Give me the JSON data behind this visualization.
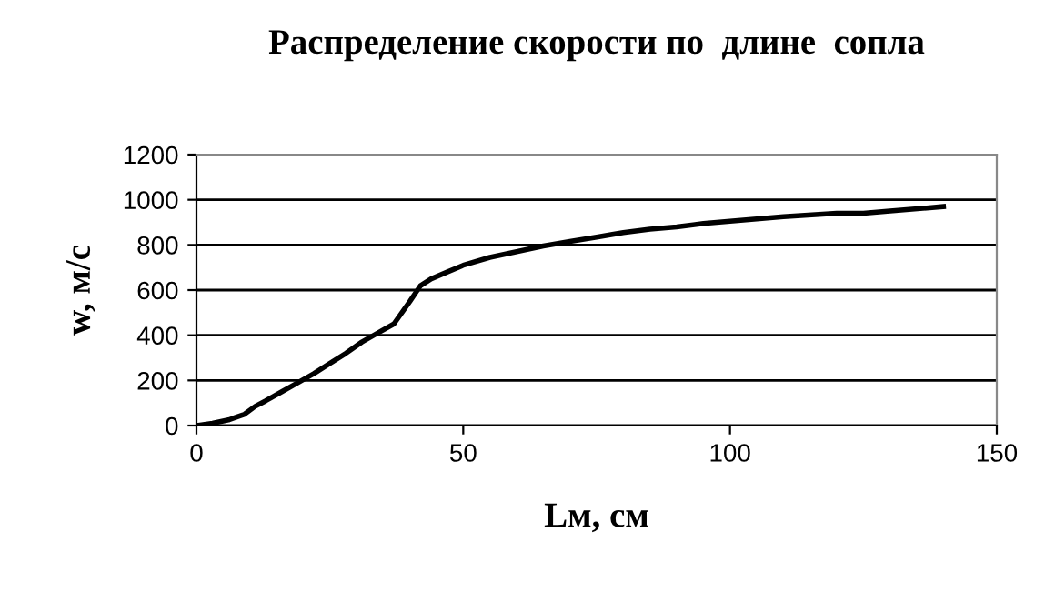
{
  "chart_data": {
    "type": "line",
    "title": "Распределение скорости по  длине  сопла",
    "xlabel": "Lм, см",
    "ylabel": "w, м/с",
    "x": [
      0,
      3,
      6,
      9,
      11,
      13,
      16,
      19,
      22,
      25,
      28,
      31,
      34,
      37,
      40,
      42,
      44,
      47,
      50,
      55,
      60,
      65,
      70,
      75,
      80,
      85,
      90,
      95,
      100,
      110,
      120,
      125,
      130,
      140
    ],
    "series": [
      {
        "color": "#000000",
        "values": [
          0,
          10,
          25,
          50,
          85,
          110,
          150,
          190,
          230,
          275,
          320,
          370,
          410,
          450,
          550,
          620,
          650,
          680,
          710,
          745,
          770,
          795,
          815,
          835,
          855,
          870,
          880,
          895,
          905,
          925,
          940,
          940,
          950,
          970
        ]
      }
    ],
    "xlim": [
      0,
      150
    ],
    "xticks": [
      0,
      50,
      100,
      150
    ],
    "ylim": [
      0,
      1200
    ],
    "yticks": [
      0,
      200,
      400,
      600,
      800,
      1000,
      1200
    ],
    "grid": "y",
    "marker": "none",
    "line_style": "solid",
    "legend": false
  }
}
